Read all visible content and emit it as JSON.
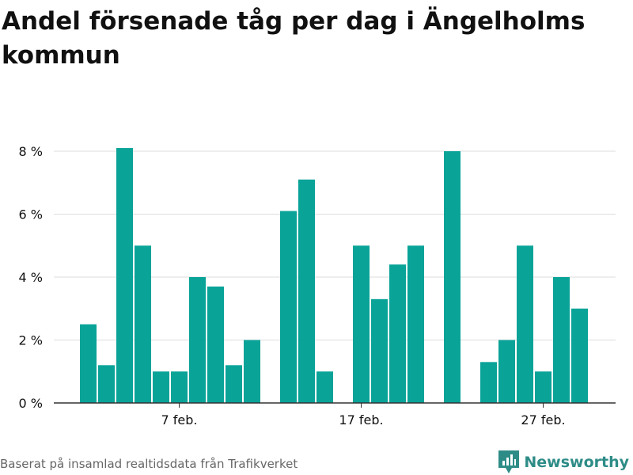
{
  "colors": {
    "bar": "#0aa398",
    "grid": "#dddddd",
    "axis": "#333333",
    "text": "#111111",
    "footer": "#666666",
    "brand": "#2e8c87"
  },
  "footer": {
    "source": "Baserat på insamlad realtidsdata från Trafikverket",
    "brand": "Newsworthy",
    "brand_icon": "newsworthy-logo-icon"
  },
  "chart_data": {
    "type": "bar",
    "title": "Andel försenade tåg per dag i Ängelholms kommun",
    "xlabel": "",
    "ylabel": "",
    "x_unit": "day of February",
    "ylim": [
      0,
      9
    ],
    "y_ticks": [
      0,
      2,
      4,
      6,
      8
    ],
    "y_tick_labels": [
      "0 %",
      "2 %",
      "4 %",
      "6 %",
      "8 %"
    ],
    "x_tick_positions": [
      7,
      17,
      27
    ],
    "x_tick_labels": [
      "7 feb.",
      "17 feb.",
      "27 feb."
    ],
    "grid": true,
    "legend": "none",
    "x": [
      2,
      3,
      4,
      5,
      6,
      7,
      8,
      9,
      10,
      11,
      12,
      13,
      14,
      15,
      16,
      17,
      18,
      19,
      20,
      21,
      22,
      23,
      24,
      25,
      26,
      27,
      28,
      29
    ],
    "values": [
      2.5,
      1.2,
      8.1,
      5.0,
      1.0,
      1.0,
      4.0,
      3.7,
      1.2,
      2.0,
      0,
      6.1,
      7.1,
      1.0,
      0,
      5.0,
      3.3,
      4.4,
      5.0,
      0,
      8.0,
      0,
      1.3,
      2.0,
      5.0,
      1.0,
      4.0,
      3.0
    ]
  }
}
